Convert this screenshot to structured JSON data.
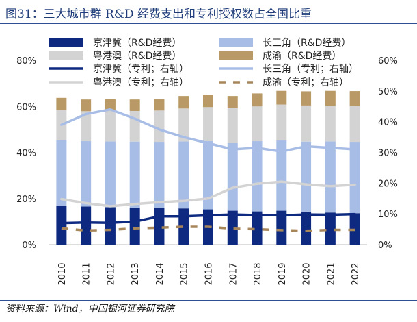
{
  "title": "图31：三大城市群 R&D 经费支出和专利授权数占全国比重",
  "source": "资料来源：Wind，中国银河证券研究院",
  "colors": {
    "jjj_bar": "#0e2a80",
    "csj_bar": "#a8bde6",
    "ygo_bar": "#d3d3d3",
    "cy_bar": "#b99a66",
    "jjj_line": "#0e2a80",
    "csj_line": "#a8bde6",
    "ygo_line": "#d3d3d3",
    "cy_line": "#a7865a"
  },
  "chart_data": {
    "type": "bar",
    "stacked": true,
    "categories": [
      "2010",
      "2011",
      "2012",
      "2013",
      "2014",
      "2015",
      "2016",
      "2017",
      "2018",
      "2019",
      "2020",
      "2021",
      "2022"
    ],
    "left_axis": {
      "min": 0,
      "max": 80,
      "step": 20,
      "ticks": [
        "0%",
        "20%",
        "40%",
        "60%",
        "80%"
      ]
    },
    "right_axis": {
      "min": 0,
      "max": 60,
      "step": 10,
      "ticks": [
        "0%",
        "10%",
        "20%",
        "30%",
        "40%",
        "50%",
        "60%"
      ]
    },
    "bar_series": [
      {
        "key": "jjj",
        "name": "京津冀（R&D经费）",
        "values": [
          16.8,
          16.5,
          16.2,
          16.0,
          15.8,
          15.7,
          15.3,
          14.7,
          14.4,
          14.7,
          14.0,
          13.9,
          13.6
        ]
      },
      {
        "key": "csj",
        "name": "长三角（R&D经费）",
        "values": [
          28.5,
          28.4,
          28.6,
          28.7,
          28.8,
          29.1,
          29.6,
          29.6,
          30.5,
          30.5,
          30.7,
          30.9,
          31.0
        ]
      },
      {
        "key": "ygo",
        "name": "粤港澳（R&D经费）",
        "values": [
          13.2,
          13.0,
          13.4,
          13.3,
          13.6,
          14.3,
          14.8,
          14.9,
          15.1,
          15.6,
          15.7,
          15.5,
          15.5
        ]
      },
      {
        "key": "cy",
        "name": "成渝（R&D经费）",
        "values": [
          5.2,
          5.1,
          5.0,
          5.0,
          5.1,
          5.4,
          5.3,
          5.3,
          5.6,
          5.9,
          6.1,
          6.4,
          6.5
        ]
      }
    ],
    "line_series": [
      {
        "key": "jjj",
        "name": "京津冀（专利；右轴）",
        "style": "solid",
        "values": [
          7.0,
          7.2,
          7.1,
          7.5,
          9.2,
          9.2,
          9.5,
          9.8,
          9.6,
          9.5,
          9.8,
          9.7,
          9.9
        ]
      },
      {
        "key": "csj",
        "name": "长三角（专利；右轴）",
        "style": "solid",
        "values": [
          39.0,
          42.5,
          44.0,
          41.0,
          37.5,
          35.0,
          33.0,
          31.0,
          31.5,
          30.3,
          32.0,
          31.5,
          31.0
        ]
      },
      {
        "key": "ygo",
        "name": "粤港澳（专利；右轴）",
        "style": "solid",
        "values": [
          14.8,
          13.5,
          12.5,
          13.2,
          13.8,
          14.2,
          15.0,
          18.5,
          19.8,
          20.5,
          19.6,
          19.0,
          19.5
        ]
      },
      {
        "key": "cy",
        "name": "成渝（专利；右轴）",
        "style": "dashed",
        "values": [
          5.3,
          4.6,
          4.8,
          5.3,
          5.5,
          5.8,
          5.8,
          5.2,
          5.0,
          4.7,
          4.5,
          4.8,
          4.8
        ]
      }
    ]
  }
}
